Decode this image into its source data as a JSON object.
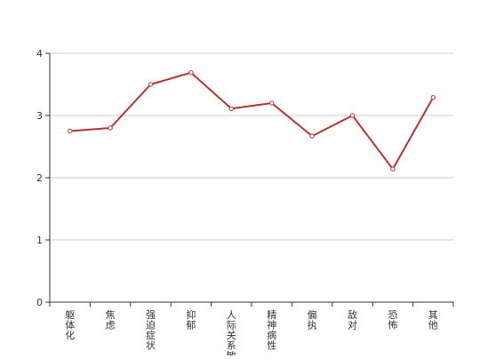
{
  "chart_data": {
    "type": "line",
    "categories": [
      "躯体化",
      "焦虑",
      "强迫症状",
      "抑郁",
      "人际关系敏感",
      "精神病性",
      "偏执",
      "敌对",
      "恐怖",
      "其他"
    ],
    "series": [
      {
        "values": [
          2.75,
          2.8,
          3.5,
          3.69,
          3.11,
          3.2,
          2.67,
          3.0,
          2.14,
          3.29
        ]
      }
    ],
    "y_ticks": [
      0,
      1,
      2,
      3,
      4
    ],
    "ylim": [
      0,
      4
    ],
    "grid": true,
    "colors": {
      "line": "#b83232",
      "axis": "#333333",
      "grid": "#cccccc",
      "marker_fill": "#ffffff"
    }
  }
}
